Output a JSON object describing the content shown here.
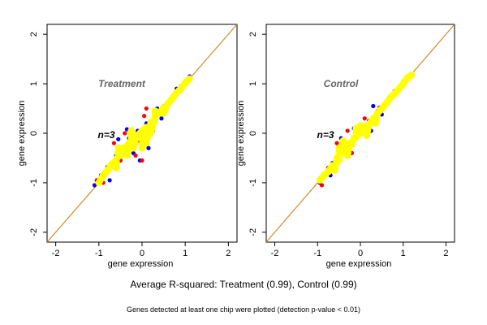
{
  "chart_data": [
    {
      "type": "scatter",
      "title": "Treatment",
      "annotation": "n=3",
      "xlabel": "gene expression",
      "ylabel": "gene expression",
      "xlim": [
        -2.2,
        2.2
      ],
      "ylim": [
        -2.2,
        2.2
      ],
      "xticks": [
        "-2",
        "-1",
        "0",
        "1",
        "2"
      ],
      "yticks": [
        "-2",
        "-1",
        "0",
        "1",
        "2"
      ],
      "reference_line": {
        "slope": 1,
        "intercept": 0,
        "color": "#d08a2a"
      },
      "grid": false,
      "series": [
        {
          "color": "#0000ff",
          "points": [
            [
              -1.1,
              -1.05
            ],
            [
              -0.95,
              -0.85
            ],
            [
              -0.8,
              -0.68
            ],
            [
              -0.6,
              -0.45
            ],
            [
              -0.45,
              -0.35
            ],
            [
              -0.3,
              -0.1
            ],
            [
              -0.1,
              0.05
            ],
            [
              0.1,
              0.2
            ],
            [
              0.3,
              0.38
            ],
            [
              0.5,
              0.55
            ],
            [
              0.7,
              0.72
            ],
            [
              0.9,
              0.95
            ],
            [
              1.1,
              1.15
            ],
            [
              -0.55,
              -0.12
            ],
            [
              -0.35,
              0.08
            ],
            [
              -0.05,
              -0.55
            ],
            [
              0.15,
              -0.3
            ],
            [
              0.25,
              0.05
            ],
            [
              0.45,
              0.3
            ],
            [
              -0.75,
              -0.95
            ],
            [
              0.35,
              0.5
            ],
            [
              0.8,
              0.9
            ],
            [
              -0.2,
              -0.4
            ]
          ]
        },
        {
          "color": "#ff0000",
          "points": [
            [
              -1.05,
              -0.95
            ],
            [
              -0.9,
              -1.0
            ],
            [
              -0.7,
              -0.6
            ],
            [
              -0.5,
              -0.55
            ],
            [
              -0.3,
              -0.25
            ],
            [
              -0.1,
              -0.15
            ],
            [
              0.05,
              0.35
            ],
            [
              0.2,
              0.15
            ],
            [
              0.4,
              0.42
            ],
            [
              0.6,
              0.62
            ],
            [
              0.85,
              0.88
            ],
            [
              -0.65,
              -0.2
            ],
            [
              -0.4,
              0.0
            ],
            [
              0.0,
              -0.55
            ],
            [
              0.1,
              0.5
            ],
            [
              -0.15,
              -0.45
            ],
            [
              0.55,
              0.5
            ],
            [
              0.95,
              1.0
            ]
          ]
        },
        {
          "color": "#ffff00",
          "points": [
            [
              -1.0,
              -1.0
            ],
            [
              -0.9,
              -0.85
            ],
            [
              -0.8,
              -0.75
            ],
            [
              -0.7,
              -0.62
            ],
            [
              -0.6,
              -0.55
            ],
            [
              -0.5,
              -0.45
            ],
            [
              -0.45,
              -0.3
            ],
            [
              -0.4,
              -0.35
            ],
            [
              -0.35,
              -0.25
            ],
            [
              -0.3,
              -0.2
            ],
            [
              -0.25,
              -0.18
            ],
            [
              -0.2,
              -0.1
            ],
            [
              -0.15,
              -0.12
            ],
            [
              -0.1,
              -0.05
            ],
            [
              -0.05,
              0.0
            ],
            [
              0.0,
              0.05
            ],
            [
              0.05,
              0.08
            ],
            [
              0.1,
              0.12
            ],
            [
              0.2,
              0.22
            ],
            [
              0.3,
              0.3
            ],
            [
              0.4,
              0.4
            ],
            [
              0.5,
              0.52
            ],
            [
              0.6,
              0.6
            ],
            [
              0.7,
              0.7
            ],
            [
              0.8,
              0.82
            ],
            [
              0.9,
              0.9
            ],
            [
              1.0,
              1.02
            ],
            [
              1.1,
              1.1
            ],
            [
              -0.55,
              -0.3
            ],
            [
              -0.35,
              -0.45
            ],
            [
              -0.2,
              -0.3
            ],
            [
              0.1,
              -0.2
            ],
            [
              0.2,
              0.0
            ],
            [
              0.5,
              0.4
            ],
            [
              -0.6,
              -0.7
            ],
            [
              0.3,
              0.45
            ],
            [
              -0.25,
              0.05
            ],
            [
              0.0,
              -0.3
            ]
          ]
        }
      ]
    },
    {
      "type": "scatter",
      "title": "Control",
      "annotation": "n=3",
      "xlabel": "gene expression",
      "ylabel": "gene expression",
      "xlim": [
        -2.2,
        2.2
      ],
      "ylim": [
        -2.2,
        2.2
      ],
      "xticks": [
        "-2",
        "-1",
        "0",
        "1",
        "2"
      ],
      "yticks": [
        "-2",
        "-1",
        "0",
        "1",
        "2"
      ],
      "reference_line": {
        "slope": 1,
        "intercept": 0,
        "color": "#d08a2a"
      },
      "grid": false,
      "series": [
        {
          "color": "#0000ff",
          "points": [
            [
              -0.95,
              -1.0
            ],
            [
              -0.8,
              -0.8
            ],
            [
              -0.65,
              -0.6
            ],
            [
              -0.5,
              -0.45
            ],
            [
              -0.35,
              -0.3
            ],
            [
              -0.2,
              -0.15
            ],
            [
              0.0,
              0.05
            ],
            [
              0.2,
              0.25
            ],
            [
              0.4,
              0.45
            ],
            [
              0.6,
              0.62
            ],
            [
              0.8,
              0.85
            ],
            [
              1.0,
              1.05
            ],
            [
              1.2,
              1.2
            ],
            [
              -0.45,
              -0.1
            ],
            [
              -0.15,
              0.1
            ],
            [
              0.3,
              0.55
            ],
            [
              0.25,
              0.05
            ],
            [
              -0.7,
              -0.85
            ],
            [
              0.5,
              0.38
            ],
            [
              0.9,
              0.92
            ]
          ]
        },
        {
          "color": "#ff0000",
          "points": [
            [
              -0.9,
              -1.05
            ],
            [
              -0.75,
              -0.7
            ],
            [
              -0.6,
              -0.68
            ],
            [
              -0.4,
              -0.35
            ],
            [
              -0.25,
              -0.3
            ],
            [
              -0.05,
              0.0
            ],
            [
              0.15,
              0.1
            ],
            [
              0.35,
              0.35
            ],
            [
              0.55,
              0.58
            ],
            [
              0.75,
              0.78
            ],
            [
              -0.55,
              -0.2
            ],
            [
              -0.3,
              0.05
            ],
            [
              0.1,
              0.3
            ],
            [
              0.45,
              0.52
            ],
            [
              1.05,
              1.1
            ],
            [
              -0.2,
              -0.4
            ]
          ]
        },
        {
          "color": "#ffff00",
          "points": [
            [
              -0.95,
              -0.95
            ],
            [
              -0.85,
              -0.85
            ],
            [
              -0.75,
              -0.78
            ],
            [
              -0.65,
              -0.65
            ],
            [
              -0.55,
              -0.5
            ],
            [
              -0.5,
              -0.55
            ],
            [
              -0.45,
              -0.4
            ],
            [
              -0.4,
              -0.3
            ],
            [
              -0.35,
              -0.38
            ],
            [
              -0.3,
              -0.25
            ],
            [
              -0.25,
              -0.2
            ],
            [
              -0.2,
              -0.22
            ],
            [
              -0.15,
              -0.1
            ],
            [
              -0.1,
              -0.08
            ],
            [
              -0.05,
              -0.02
            ],
            [
              0.0,
              0.0
            ],
            [
              0.1,
              0.12
            ],
            [
              0.2,
              0.18
            ],
            [
              0.3,
              0.3
            ],
            [
              0.4,
              0.4
            ],
            [
              0.5,
              0.5
            ],
            [
              0.6,
              0.6
            ],
            [
              0.7,
              0.72
            ],
            [
              0.8,
              0.8
            ],
            [
              0.9,
              0.9
            ],
            [
              1.0,
              1.0
            ],
            [
              1.1,
              1.12
            ],
            [
              1.2,
              1.18
            ],
            [
              -0.5,
              -0.3
            ],
            [
              -0.3,
              -0.45
            ],
            [
              -0.1,
              0.1
            ],
            [
              0.15,
              -0.05
            ],
            [
              0.35,
              0.2
            ],
            [
              -0.6,
              -0.75
            ],
            [
              0.0,
              0.15
            ],
            [
              -0.4,
              -0.15
            ]
          ]
        }
      ]
    }
  ],
  "captions": {
    "main": "Average R-squared: Treatment (0.99), Control (0.99)",
    "note": "Genes detected at least one chip were plotted (detection p-value < 0.01)"
  }
}
